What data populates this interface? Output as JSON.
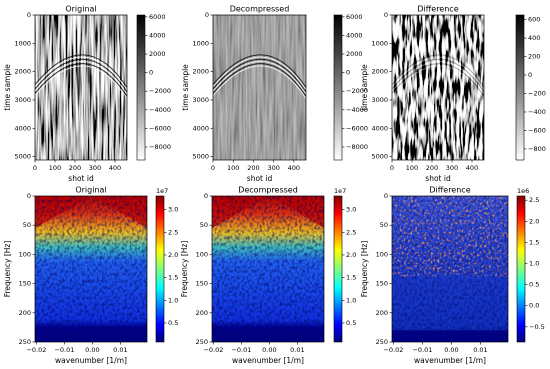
{
  "chart_data": [
    {
      "type": "image",
      "title": "Original",
      "xlabel": "shot id",
      "ylabel": "time sample",
      "cmap": "Greys",
      "xlim": [
        0,
        460
      ],
      "xticks": [
        0,
        100,
        200,
        300,
        400
      ],
      "ylim": [
        5120,
        0
      ],
      "yticks": [
        0,
        1000,
        2000,
        3000,
        4000,
        5000
      ],
      "clim": [
        -9400,
        6200
      ],
      "cticks": [
        6000,
        4000,
        2000,
        0,
        {
          "value": -2000,
          "label": "−2000"
        },
        {
          "value": -4000,
          "label": "−4000"
        },
        {
          "value": -6000,
          "label": "−6000"
        },
        {
          "value": -8000,
          "label": "−8000"
        }
      ]
    },
    {
      "type": "image",
      "title": "Decompressed",
      "xlabel": "shot id",
      "ylabel": "time sample",
      "cmap": "Greys",
      "xlim": [
        0,
        460
      ],
      "xticks": [
        0,
        100,
        200,
        300,
        400
      ],
      "ylim": [
        5120,
        0
      ],
      "yticks": [
        0,
        1000,
        2000,
        3000,
        4000,
        5000
      ],
      "clim": [
        -9400,
        6200
      ],
      "cticks": [
        6000,
        4000,
        2000,
        0,
        {
          "value": -2000,
          "label": "−2000"
        },
        {
          "value": -4000,
          "label": "−4000"
        },
        {
          "value": -6000,
          "label": "−6000"
        },
        {
          "value": -8000,
          "label": "−8000"
        }
      ]
    },
    {
      "type": "image",
      "title": "Difference",
      "xlabel": "shot id",
      "ylabel": "time sample",
      "cmap": "Greys",
      "xlim": [
        0,
        460
      ],
      "xticks": [
        0,
        100,
        200,
        300,
        400
      ],
      "ylim": [
        5120,
        0
      ],
      "yticks": [
        0,
        1000,
        2000,
        3000,
        4000,
        5000
      ],
      "clim": [
        -920,
        650
      ],
      "cticks": [
        600,
        400,
        200,
        0,
        {
          "value": -200,
          "label": "−200"
        },
        {
          "value": -400,
          "label": "−400"
        },
        {
          "value": -600,
          "label": "−600"
        },
        {
          "value": -800,
          "label": "−800"
        }
      ]
    },
    {
      "type": "image",
      "title": "Original",
      "xlabel": "wavenumber [1/m]",
      "ylabel": "Frequency [Hz]",
      "cmap": "jet",
      "xlim": [
        -0.0205,
        0.0195
      ],
      "xticks": [
        {
          "value": -0.02,
          "label": "−0.02"
        },
        {
          "value": -0.01,
          "label": "−0.01"
        },
        {
          "value": 0,
          "label": "0.00"
        },
        0.01
      ],
      "ylim": [
        250,
        0
      ],
      "yticks": [
        0,
        50,
        100,
        150,
        200,
        250
      ],
      "clim": [
        0.08,
        3.3
      ],
      "cticks": [
        0.5,
        {
          "value": 1,
          "label": "1.0"
        },
        1.5,
        {
          "value": 2,
          "label": "2.0"
        },
        2.5,
        {
          "value": 3,
          "label": "3.0"
        }
      ],
      "coffset": "1e7"
    },
    {
      "type": "image",
      "title": "Decompressed",
      "xlabel": "wavenumber [1/m]",
      "ylabel": "Frequency [Hz]",
      "cmap": "jet",
      "xlim": [
        -0.0205,
        0.0195
      ],
      "xticks": [
        {
          "value": -0.02,
          "label": "−0.02"
        },
        {
          "value": -0.01,
          "label": "−0.01"
        },
        {
          "value": 0,
          "label": "0.00"
        },
        0.01
      ],
      "ylim": [
        250,
        0
      ],
      "yticks": [
        0,
        50,
        100,
        150,
        200,
        250
      ],
      "clim": [
        0.08,
        3.3
      ],
      "cticks": [
        0.5,
        {
          "value": 1,
          "label": "1.0"
        },
        1.5,
        {
          "value": 2,
          "label": "2.0"
        },
        2.5,
        {
          "value": 3,
          "label": "3.0"
        }
      ],
      "coffset": "1e7"
    },
    {
      "type": "image",
      "title": "Difference",
      "xlabel": "wavenumber [1/m]",
      "ylabel": "Frequency [Hz]",
      "cmap": "jet",
      "xlim": [
        -0.0205,
        0.0195
      ],
      "xticks": [
        {
          "value": -0.02,
          "label": "−0.02"
        },
        {
          "value": -0.01,
          "label": "−0.01"
        },
        {
          "value": 0,
          "label": "0.00"
        },
        0.01
      ],
      "ylim": [
        250,
        0
      ],
      "yticks": [
        0,
        50,
        100,
        150,
        200,
        250
      ],
      "clim": [
        -0.86,
        2.6
      ],
      "cticks": [
        {
          "value": -0.5,
          "label": "−0.5"
        },
        {
          "value": 0,
          "label": "0.0"
        },
        0.5,
        {
          "value": 1,
          "label": "1.0"
        },
        1.5,
        {
          "value": 2,
          "label": "2.0"
        },
        2.5
      ],
      "coffset": "1e6"
    }
  ]
}
